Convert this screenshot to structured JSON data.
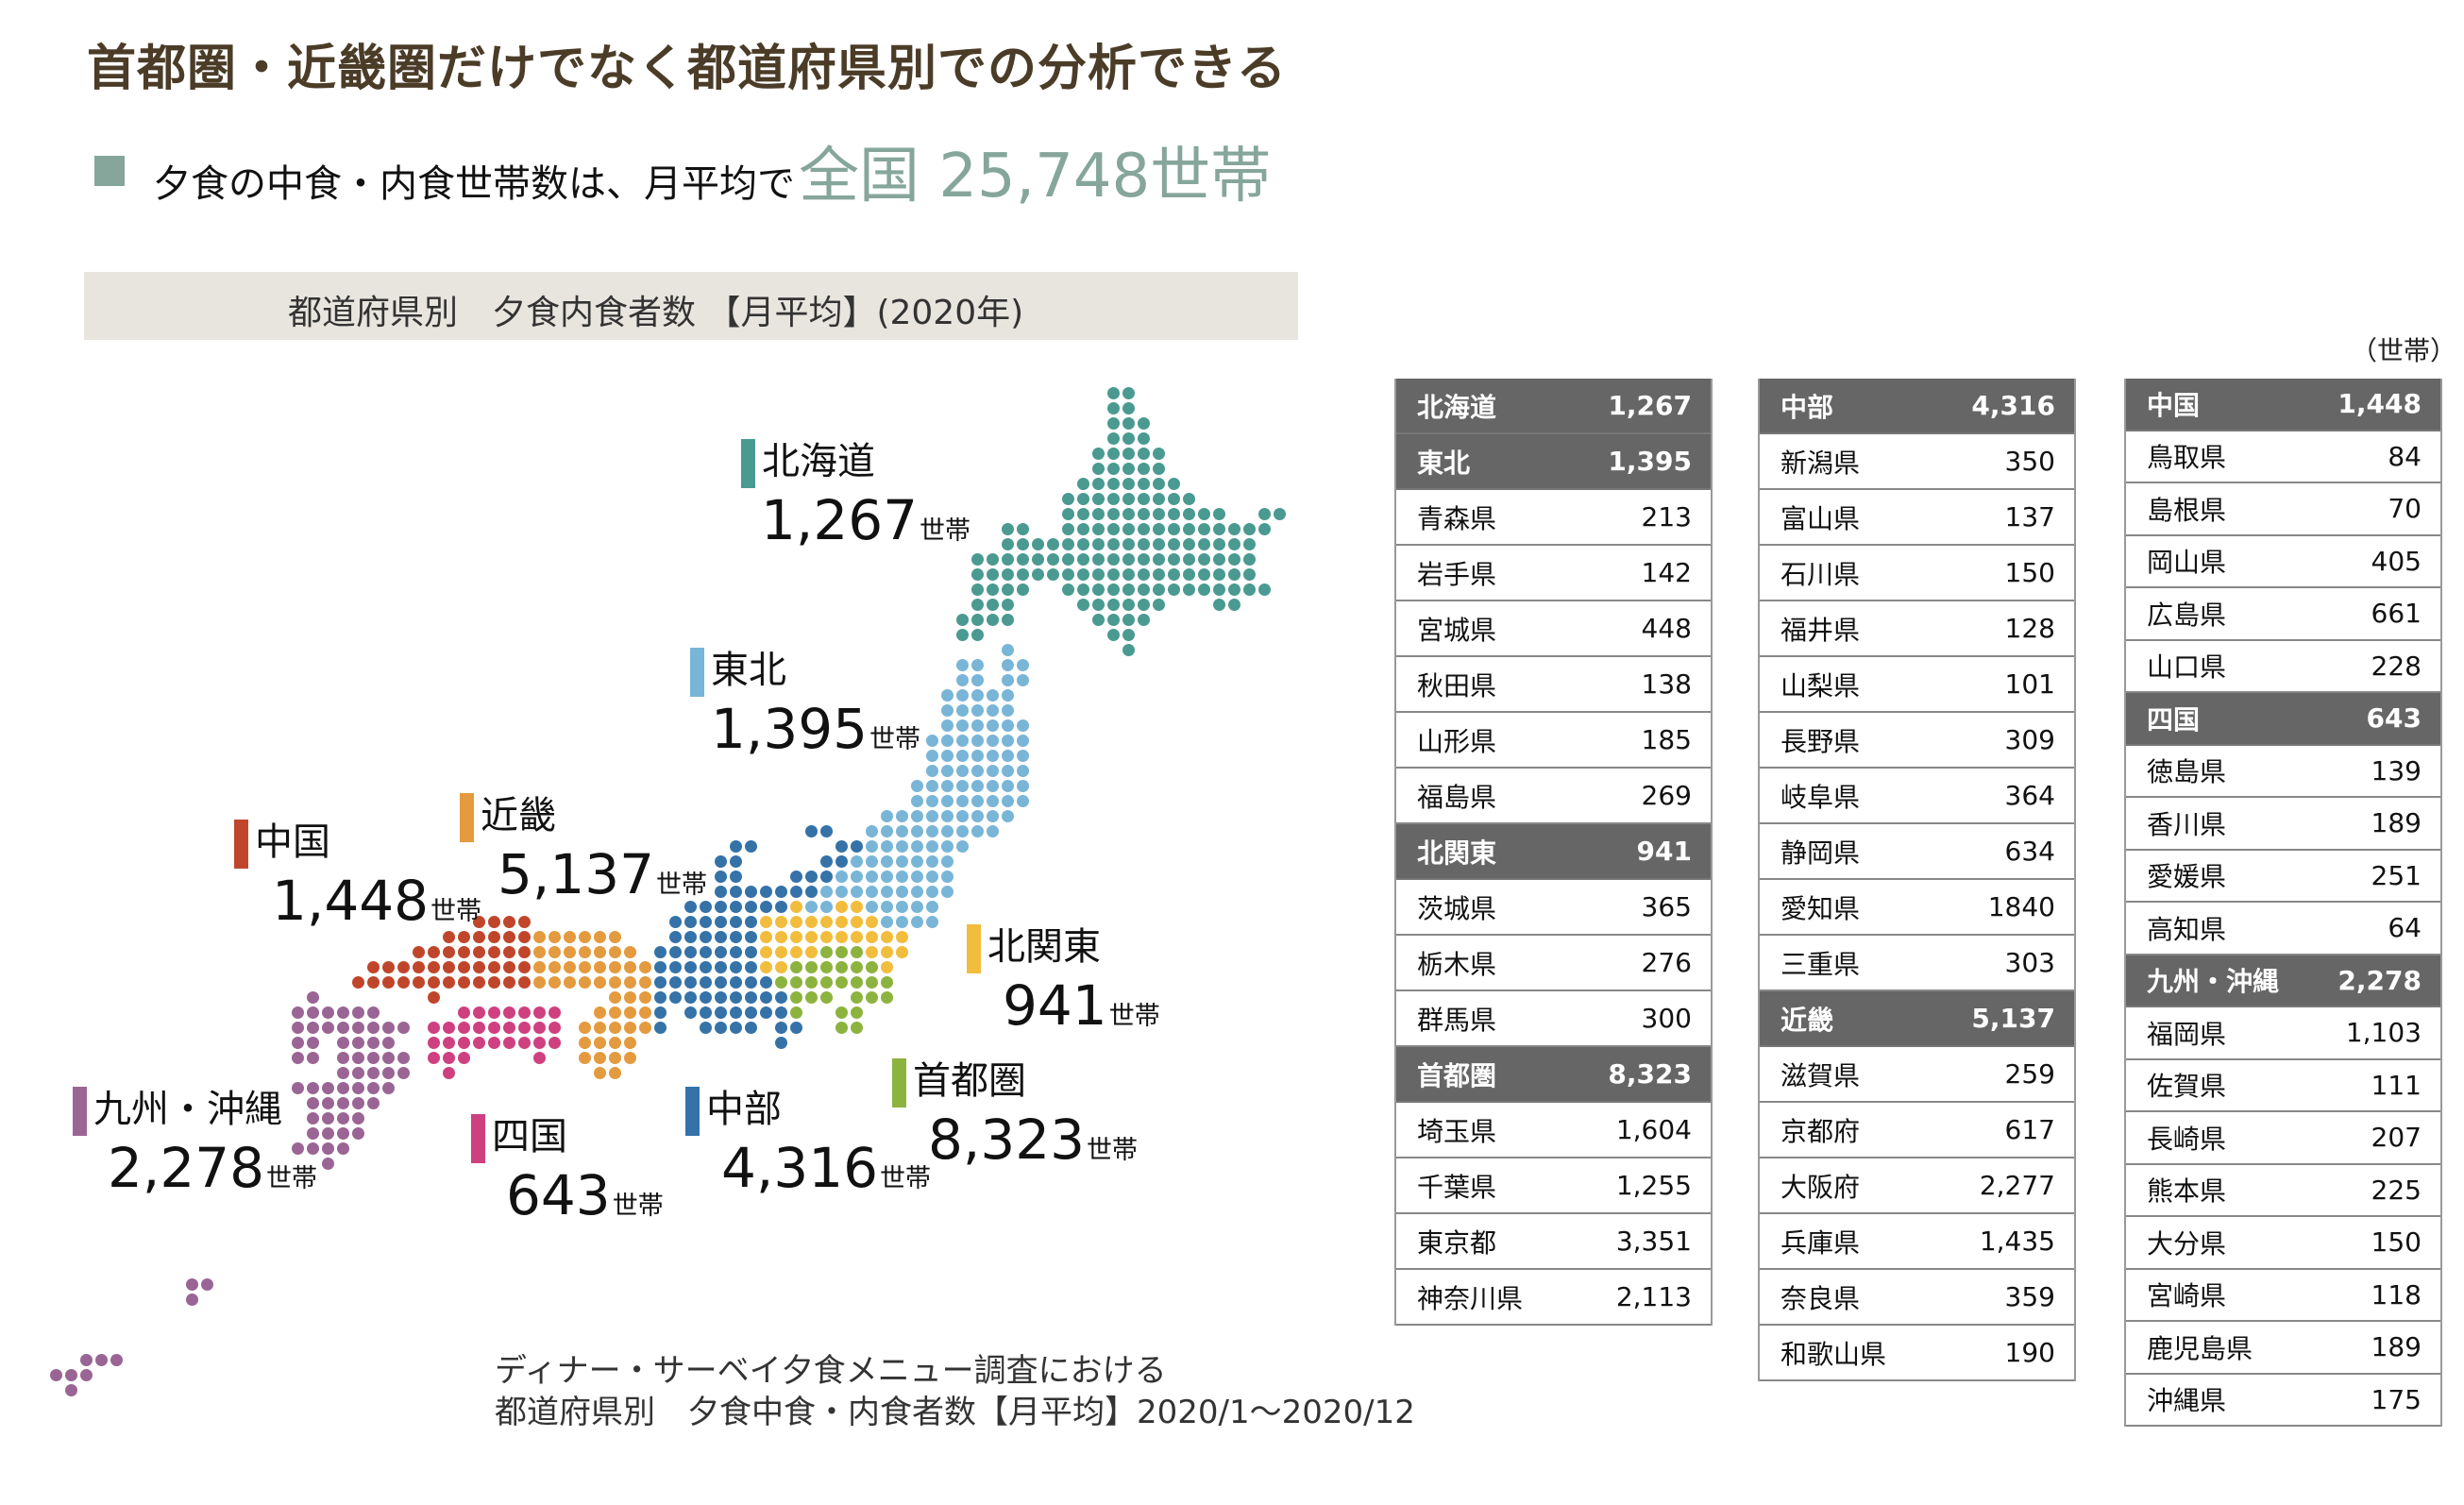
{
  "header": {
    "title": "首都圏・近畿圏だけでなく都道府県別での分析できる",
    "subtitle_text": "夕食の中食・内食世帯数は、月平均で",
    "subtitle_highlight": "全国 25,748世帯",
    "accent_color": "#86a69b"
  },
  "chart_title": "都道府県別　夕食内食者数 【月平均】(2020年)",
  "unit_note": "（世帯）",
  "regions": [
    {
      "id": "hokkaido",
      "name": "北海道",
      "value": "1,267",
      "unit": "世帯",
      "color": "#4a9a91"
    },
    {
      "id": "tohoku",
      "name": "東北",
      "value": "1,395",
      "unit": "世帯",
      "color": "#79b5d6"
    },
    {
      "id": "kinki",
      "name": "近畿",
      "value": "5,137",
      "unit": "世帯",
      "color": "#e49a3e"
    },
    {
      "id": "chugoku",
      "name": "中国",
      "value": "1,448",
      "unit": "世帯",
      "color": "#c0462b"
    },
    {
      "id": "kitakanto",
      "name": "北関東",
      "value": "941",
      "unit": "世帯",
      "color": "#f2bd3c"
    },
    {
      "id": "shutoken",
      "name": "首都圏",
      "value": "8,323",
      "unit": "世帯",
      "color": "#8db33f"
    },
    {
      "id": "chubu",
      "name": "中部",
      "value": "4,316",
      "unit": "世帯",
      "color": "#3572a8"
    },
    {
      "id": "shikoku",
      "name": "四国",
      "value": "643",
      "unit": "世帯",
      "color": "#cf4080"
    },
    {
      "id": "kyushu",
      "name": "九州・沖縄",
      "value": "2,278",
      "unit": "世帯",
      "color": "#9a6595"
    }
  ],
  "tables": [
    [
      {
        "name": "北海道",
        "value": "1,267",
        "header": true
      },
      {
        "name": "東北",
        "value": "1,395",
        "header": true
      },
      {
        "name": "青森県",
        "value": "213"
      },
      {
        "name": "岩手県",
        "value": "142"
      },
      {
        "name": "宮城県",
        "value": "448"
      },
      {
        "name": "秋田県",
        "value": "138"
      },
      {
        "name": "山形県",
        "value": "185"
      },
      {
        "name": "福島県",
        "value": "269"
      },
      {
        "name": "北関東",
        "value": "941",
        "header": true
      },
      {
        "name": "茨城県",
        "value": "365"
      },
      {
        "name": "栃木県",
        "value": "276"
      },
      {
        "name": "群馬県",
        "value": "300"
      },
      {
        "name": "首都圏",
        "value": "8,323",
        "header": true
      },
      {
        "name": "埼玉県",
        "value": "1,604"
      },
      {
        "name": "千葉県",
        "value": "1,255"
      },
      {
        "name": "東京都",
        "value": "3,351"
      },
      {
        "name": "神奈川県",
        "value": "2,113"
      }
    ],
    [
      {
        "name": "中部",
        "value": "4,316",
        "header": true
      },
      {
        "name": "新潟県",
        "value": "350"
      },
      {
        "name": "富山県",
        "value": "137"
      },
      {
        "name": "石川県",
        "value": "150"
      },
      {
        "name": "福井県",
        "value": "128"
      },
      {
        "name": "山梨県",
        "value": "101"
      },
      {
        "name": "長野県",
        "value": "309"
      },
      {
        "name": "岐阜県",
        "value": "364"
      },
      {
        "name": "静岡県",
        "value": "634"
      },
      {
        "name": "愛知県",
        "value": "1840"
      },
      {
        "name": "三重県",
        "value": "303"
      },
      {
        "name": "近畿",
        "value": "5,137",
        "header": true
      },
      {
        "name": "滋賀県",
        "value": "259"
      },
      {
        "name": "京都府",
        "value": "617"
      },
      {
        "name": "大阪府",
        "value": "2,277"
      },
      {
        "name": "兵庫県",
        "value": "1,435"
      },
      {
        "name": "奈良県",
        "value": "359"
      },
      {
        "name": "和歌山県",
        "value": "190"
      }
    ],
    [
      {
        "name": "中国",
        "value": "1,448",
        "header": true
      },
      {
        "name": "鳥取県",
        "value": "84"
      },
      {
        "name": "島根県",
        "value": "70"
      },
      {
        "name": "岡山県",
        "value": "405"
      },
      {
        "name": "広島県",
        "value": "661"
      },
      {
        "name": "山口県",
        "value": "228"
      },
      {
        "name": "四国",
        "value": "643",
        "header": true
      },
      {
        "name": "徳島県",
        "value": "139"
      },
      {
        "name": "香川県",
        "value": "189"
      },
      {
        "name": "愛媛県",
        "value": "251"
      },
      {
        "name": "高知県",
        "value": "64"
      },
      {
        "name": "九州・沖縄",
        "value": "2,278",
        "header": true
      },
      {
        "name": "福岡県",
        "value": "1,103"
      },
      {
        "name": "佐賀県",
        "value": "111"
      },
      {
        "name": "長崎県",
        "value": "207"
      },
      {
        "name": "熊本県",
        "value": "225"
      },
      {
        "name": "大分県",
        "value": "150"
      },
      {
        "name": "宮崎県",
        "value": "118"
      },
      {
        "name": "鹿児島県",
        "value": "189"
      },
      {
        "name": "沖縄県",
        "value": "175"
      }
    ]
  ],
  "footer": {
    "line1": "ディナー・サーベイ夕食メニュー調査における",
    "line2": "都道府県別　夕食中食・内食者数【月平均】2020/1〜2020/12"
  }
}
